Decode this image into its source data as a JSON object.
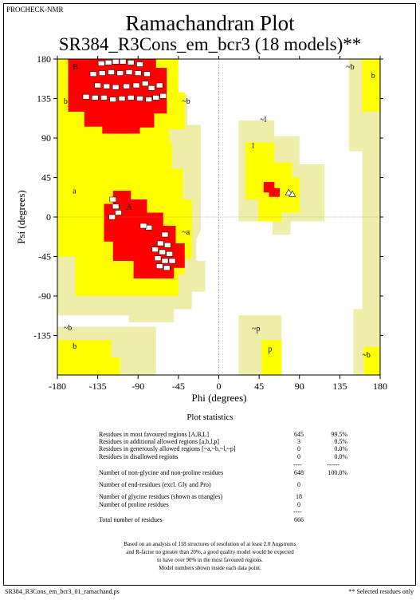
{
  "header": {
    "program": "PROCHECK-NMR",
    "title": "Ramachandran Plot",
    "subtitle": "SR384_R3Cons_em_bcr3 (18 models)**"
  },
  "colors": {
    "most_favoured": "#ff0000",
    "additional_allowed": "#ffff00",
    "generously_allowed": "#eeeeaa",
    "disallowed": "#ffffff"
  },
  "chart_data": {
    "type": "scatter",
    "xlabel": "Phi (degrees)",
    "ylabel": "Psi (degrees)",
    "xlim": [
      -180,
      180
    ],
    "ylim": [
      -180,
      180
    ],
    "x_ticks": [
      "-180",
      "-135",
      "-90",
      "-45",
      "0",
      "45",
      "90",
      "135",
      "180"
    ],
    "y_ticks": [
      "180",
      "135",
      "90",
      "45",
      "0",
      "-45",
      "-90",
      "-135"
    ],
    "region_labels": [
      {
        "text": "B",
        "phi": -163,
        "psi": 168
      },
      {
        "text": "b",
        "phi": -173,
        "psi": 129
      },
      {
        "text": "~b",
        "phi": -41,
        "psi": 129
      },
      {
        "text": "~l",
        "phi": 46,
        "psi": 108
      },
      {
        "text": "l",
        "phi": 37,
        "psi": 78
      },
      {
        "text": "a",
        "phi": -163,
        "psi": 27
      },
      {
        "text": "A",
        "phi": -103,
        "psi": 8
      },
      {
        "text": "~a",
        "phi": -41,
        "psi": -20
      },
      {
        "text": "~b",
        "phi": -173,
        "psi": -129
      },
      {
        "text": "b",
        "phi": -163,
        "psi": -150
      },
      {
        "text": "~p",
        "phi": 37,
        "psi": -130
      },
      {
        "text": "p",
        "phi": 55,
        "psi": -153
      },
      {
        "text": "~b",
        "phi": 142,
        "psi": 168
      },
      {
        "text": "b",
        "phi": 170,
        "psi": 158
      },
      {
        "text": "~b",
        "phi": 160,
        "psi": -160
      }
    ],
    "glycine_triangles": [
      {
        "phi": 78,
        "psi": 28
      },
      {
        "phi": 82,
        "psi": 26
      }
    ]
  },
  "stats": {
    "title": "Plot statistics",
    "rows": [
      {
        "label": "Residues in most favoured regions  [A,B,L]",
        "count": "645",
        "pct": "99.5%"
      },
      {
        "label": "Residues in additional allowed regions  [a,b,l,p]",
        "count": "3",
        "pct": "0.5%"
      },
      {
        "label": "Residues in generously allowed regions  [~a,~b,~l,~p]",
        "count": "0",
        "pct": "0.0%"
      },
      {
        "label": "Residues in disallowed regions",
        "count": "0",
        "pct": "0.0%"
      },
      {
        "label": "Number of non-glycine and non-proline residues",
        "count": "648",
        "pct": "100.0%"
      },
      {
        "label": "Number of end-residues (excl. Gly and Pro)",
        "count": "0",
        "pct": ""
      },
      {
        "label": "Number of glycine residues (shown as triangles)",
        "count": "18",
        "pct": ""
      },
      {
        "label": "Number of proline residues",
        "count": "0",
        "pct": ""
      },
      {
        "label": "Total number of residues",
        "count": "666",
        "pct": ""
      }
    ],
    "separator_short": "----",
    "separator_long": "------",
    "footnote_lines": [
      "Based on an analysis of 118 structures of resolution of at least 2.0 Angstroms",
      "and R-factor no greater than 20%, a good quality model would be expected",
      "to have over 90% in the most favoured regions.",
      "Model numbers shown inside each data point."
    ]
  },
  "footer": {
    "filename": "SR384_R3Cons_em_bcr3_01_ramachand.ps",
    "note": "** Selected residues only"
  }
}
